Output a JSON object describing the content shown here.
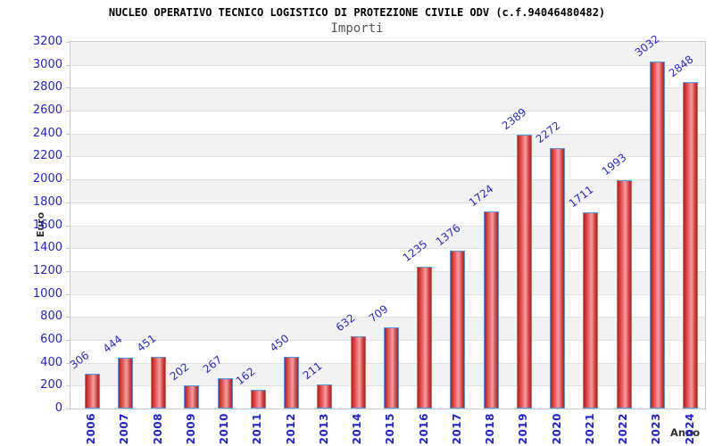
{
  "chart_data": {
    "type": "bar",
    "title": "NUCLEO OPERATIVO TECNICO LOGISTICO DI PROTEZIONE CIVILE ODV (c.f.94046480482)",
    "subtitle": "Importi",
    "xlabel": "Anno",
    "ylabel": "Euro",
    "categories": [
      "2006",
      "2007",
      "2008",
      "2009",
      "2010",
      "2011",
      "2012",
      "2013",
      "2014",
      "2015",
      "2016",
      "2017",
      "2018",
      "2019",
      "2020",
      "2021",
      "2022",
      "2023",
      "2024"
    ],
    "values": [
      306,
      444,
      451,
      202,
      267,
      162,
      450,
      211,
      632,
      709,
      1235,
      1376,
      1724,
      2389,
      2272,
      1711,
      1993,
      3032,
      2848
    ],
    "ylim": [
      0,
      3200
    ],
    "yticks": [
      0,
      200,
      400,
      600,
      800,
      1000,
      1200,
      1400,
      1600,
      1800,
      2000,
      2200,
      2400,
      2600,
      2800,
      3000,
      3200
    ],
    "grid": true,
    "legend": "none",
    "bands_alternating": true,
    "colors": {
      "tick_label": "#2323cc",
      "value_label": "#2a2ac8",
      "bar_border": "#4d9be6",
      "bar_edge": "#b91c1c",
      "bar_center": "#f2a0a0",
      "band": "#f2f2f2",
      "gridline": "#e0e0e0",
      "plot_border": "#c9c9c9",
      "title": "#000000",
      "subtitle": "#555555",
      "axis_title": "#333333"
    }
  }
}
